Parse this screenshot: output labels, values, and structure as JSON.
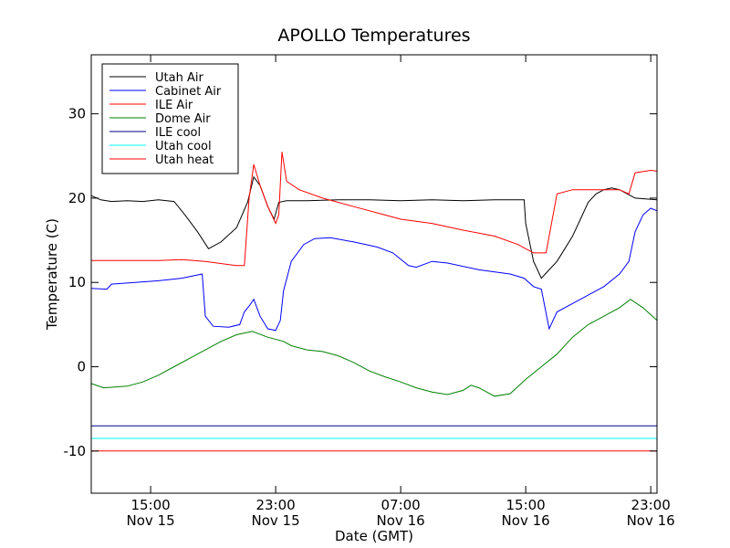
{
  "chart_data": {
    "type": "line",
    "title": "APOLLO Temperatures",
    "xlabel": "Date (GMT)",
    "ylabel": "Temperature (C)",
    "x_unit": "hours since Nov 15 00:00 GMT",
    "xlim": [
      11.2,
      47.4
    ],
    "ylim": [
      -15,
      37
    ],
    "grid": false,
    "legend_position": "top-left",
    "x_ticks": [
      {
        "value": 15,
        "time": "15:00",
        "date": "Nov 15"
      },
      {
        "value": 23,
        "time": "23:00",
        "date": "Nov 15"
      },
      {
        "value": 31,
        "time": "07:00",
        "date": "Nov 16"
      },
      {
        "value": 39,
        "time": "15:00",
        "date": "Nov 16"
      },
      {
        "value": 47,
        "time": "23:00",
        "date": "Nov 16"
      }
    ],
    "y_ticks": [
      {
        "value": -10,
        "label": "-10"
      },
      {
        "value": 0,
        "label": "0"
      },
      {
        "value": 10,
        "label": "10"
      },
      {
        "value": 20,
        "label": "20"
      },
      {
        "value": 30,
        "label": "30"
      }
    ],
    "series": [
      {
        "name": "Utah Air",
        "color": "#000000",
        "points": [
          [
            11.2,
            20.3
          ],
          [
            11.8,
            19.8
          ],
          [
            12.5,
            19.6
          ],
          [
            13.5,
            19.7
          ],
          [
            14.5,
            19.6
          ],
          [
            15.5,
            19.8
          ],
          [
            16.5,
            19.6
          ],
          [
            17.2,
            18.0
          ],
          [
            18.0,
            16.0
          ],
          [
            18.7,
            14.0
          ],
          [
            19.5,
            14.8
          ],
          [
            20.5,
            16.5
          ],
          [
            21.2,
            19.5
          ],
          [
            21.6,
            22.5
          ],
          [
            22.0,
            21.5
          ],
          [
            22.5,
            19.0
          ],
          [
            22.9,
            17.5
          ],
          [
            23.2,
            19.5
          ],
          [
            23.7,
            19.7
          ],
          [
            25.0,
            19.7
          ],
          [
            27.0,
            19.8
          ],
          [
            29.0,
            19.8
          ],
          [
            31.0,
            19.7
          ],
          [
            33.0,
            19.8
          ],
          [
            35.0,
            19.7
          ],
          [
            37.0,
            19.8
          ],
          [
            38.9,
            19.8
          ],
          [
            39.0,
            17.0
          ],
          [
            39.5,
            12.5
          ],
          [
            40.0,
            10.5
          ],
          [
            40.5,
            11.5
          ],
          [
            41.0,
            12.5
          ],
          [
            41.5,
            14.0
          ],
          [
            42.0,
            15.5
          ],
          [
            42.5,
            17.5
          ],
          [
            43.0,
            19.5
          ],
          [
            43.5,
            20.5
          ],
          [
            44.0,
            21.0
          ],
          [
            44.5,
            21.2
          ],
          [
            45.0,
            21.0
          ],
          [
            45.5,
            20.5
          ],
          [
            46.0,
            20.0
          ],
          [
            47.4,
            19.8
          ]
        ]
      },
      {
        "name": "Cabinet Air",
        "color": "#0000ff",
        "points": [
          [
            11.2,
            9.3
          ],
          [
            12.2,
            9.2
          ],
          [
            12.5,
            9.8
          ],
          [
            14.0,
            10.0
          ],
          [
            15.5,
            10.2
          ],
          [
            17.0,
            10.5
          ],
          [
            17.8,
            10.8
          ],
          [
            18.3,
            11.0
          ],
          [
            18.5,
            6.0
          ],
          [
            19.0,
            4.8
          ],
          [
            20.0,
            4.7
          ],
          [
            20.7,
            5.0
          ],
          [
            21.0,
            6.5
          ],
          [
            21.3,
            7.2
          ],
          [
            21.6,
            8.0
          ],
          [
            22.0,
            6.0
          ],
          [
            22.5,
            4.5
          ],
          [
            23.0,
            4.3
          ],
          [
            23.3,
            5.5
          ],
          [
            23.5,
            9.0
          ],
          [
            24.0,
            12.5
          ],
          [
            24.8,
            14.5
          ],
          [
            25.5,
            15.2
          ],
          [
            26.5,
            15.3
          ],
          [
            28.0,
            14.8
          ],
          [
            29.5,
            14.2
          ],
          [
            30.5,
            13.5
          ],
          [
            31.5,
            12.0
          ],
          [
            32.0,
            11.8
          ],
          [
            33.0,
            12.5
          ],
          [
            34.0,
            12.3
          ],
          [
            36.0,
            11.5
          ],
          [
            38.0,
            11.0
          ],
          [
            38.9,
            10.5
          ],
          [
            39.5,
            9.5
          ],
          [
            40.0,
            9.2
          ],
          [
            40.5,
            4.5
          ],
          [
            41.0,
            6.5
          ],
          [
            42.0,
            7.5
          ],
          [
            43.0,
            8.5
          ],
          [
            44.0,
            9.5
          ],
          [
            45.0,
            11.0
          ],
          [
            45.6,
            12.5
          ],
          [
            46.0,
            16.0
          ],
          [
            46.5,
            18.0
          ],
          [
            47.0,
            18.8
          ],
          [
            47.4,
            18.5
          ]
        ]
      },
      {
        "name": "ILE Air",
        "color": "#ff0000",
        "points": [
          [
            11.2,
            12.6
          ],
          [
            12.5,
            12.6
          ],
          [
            14.0,
            12.6
          ],
          [
            15.5,
            12.6
          ],
          [
            17.0,
            12.7
          ],
          [
            18.5,
            12.5
          ],
          [
            20.5,
            12.0
          ],
          [
            21.0,
            12.0
          ],
          [
            21.3,
            20.0
          ],
          [
            21.6,
            24.0
          ],
          [
            22.0,
            21.5
          ],
          [
            22.5,
            19.0
          ],
          [
            23.0,
            17.0
          ],
          [
            23.2,
            18.0
          ],
          [
            23.4,
            25.5
          ],
          [
            23.7,
            22.0
          ],
          [
            24.5,
            21.0
          ],
          [
            26.0,
            20.0
          ],
          [
            28.0,
            19.0
          ],
          [
            30.0,
            18.0
          ],
          [
            31.0,
            17.5
          ],
          [
            33.0,
            17.0
          ],
          [
            35.0,
            16.2
          ],
          [
            37.0,
            15.5
          ],
          [
            38.5,
            14.5
          ],
          [
            39.5,
            13.5
          ],
          [
            40.3,
            13.5
          ],
          [
            41.0,
            20.5
          ],
          [
            42.0,
            21.0
          ],
          [
            44.0,
            21.0
          ],
          [
            45.0,
            21.0
          ],
          [
            45.6,
            20.5
          ],
          [
            46.0,
            23.0
          ],
          [
            47.0,
            23.3
          ],
          [
            47.4,
            23.2
          ]
        ]
      },
      {
        "name": "Dome Air",
        "color": "#008000",
        "points": [
          [
            11.2,
            -2.0
          ],
          [
            12.0,
            -2.5
          ],
          [
            13.5,
            -2.3
          ],
          [
            14.5,
            -1.8
          ],
          [
            15.5,
            -1.0
          ],
          [
            16.5,
            0.0
          ],
          [
            17.5,
            1.0
          ],
          [
            18.5,
            2.0
          ],
          [
            19.5,
            3.0
          ],
          [
            20.5,
            3.8
          ],
          [
            21.5,
            4.2
          ],
          [
            22.5,
            3.5
          ],
          [
            23.5,
            3.0
          ],
          [
            24.0,
            2.5
          ],
          [
            25.0,
            2.0
          ],
          [
            26.0,
            1.8
          ],
          [
            27.0,
            1.3
          ],
          [
            28.0,
            0.5
          ],
          [
            29.0,
            -0.5
          ],
          [
            30.0,
            -1.2
          ],
          [
            31.0,
            -1.8
          ],
          [
            32.0,
            -2.5
          ],
          [
            33.0,
            -3.0
          ],
          [
            34.0,
            -3.3
          ],
          [
            35.0,
            -2.8
          ],
          [
            35.5,
            -2.2
          ],
          [
            36.0,
            -2.5
          ],
          [
            37.0,
            -3.5
          ],
          [
            38.0,
            -3.2
          ],
          [
            39.0,
            -1.5
          ],
          [
            40.0,
            0.0
          ],
          [
            41.0,
            1.5
          ],
          [
            42.0,
            3.5
          ],
          [
            43.0,
            5.0
          ],
          [
            44.0,
            6.0
          ],
          [
            45.0,
            7.0
          ],
          [
            45.7,
            8.0
          ],
          [
            46.5,
            7.0
          ],
          [
            47.4,
            5.5
          ]
        ]
      },
      {
        "name": "ILE cool",
        "color": "#00008b",
        "points": [
          [
            11.2,
            -7.0
          ],
          [
            47.4,
            -7.0
          ]
        ]
      },
      {
        "name": "Utah cool",
        "color": "#00ffff",
        "points": [
          [
            11.2,
            -8.5
          ],
          [
            47.4,
            -8.5
          ]
        ]
      },
      {
        "name": "Utah heat",
        "color": "#ff0000",
        "points": [
          [
            11.2,
            -10.0
          ],
          [
            47.4,
            -10.0
          ]
        ]
      }
    ]
  }
}
